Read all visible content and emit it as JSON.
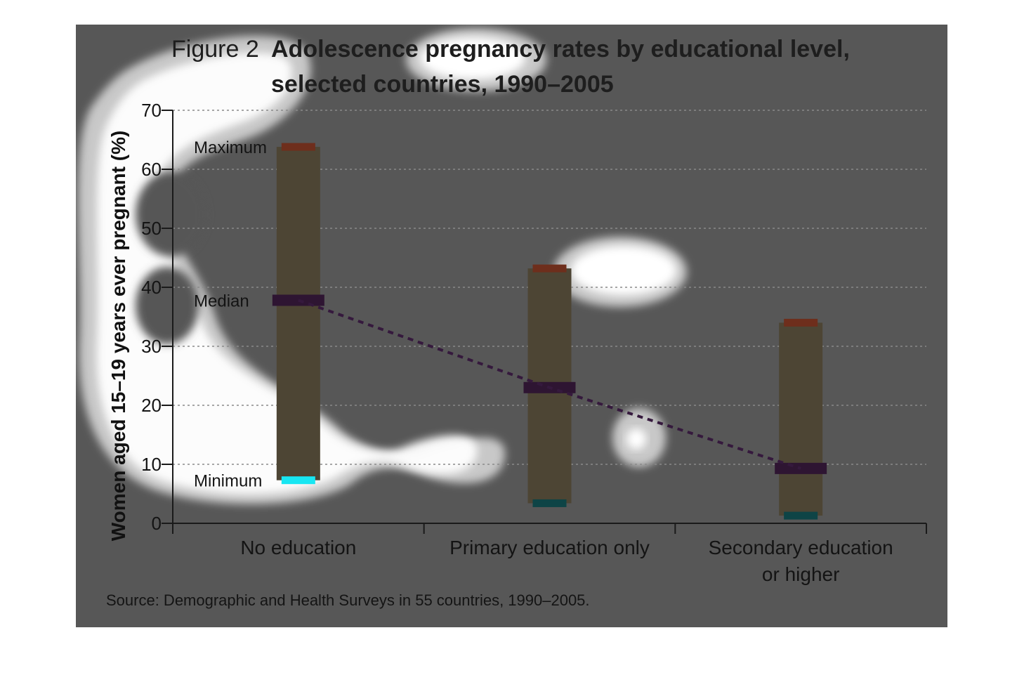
{
  "chart_data": {
    "type": "bar",
    "title_prefix": "Figure 2",
    "title_line1": "Adolescence pregnancy rates by educational level,",
    "title_line2": "selected countries, 1990–2005",
    "xlabel": "",
    "ylabel": "Women aged 15–19 years ever pregnant (%)",
    "ylim": [
      0,
      70
    ],
    "yticks": [
      "0",
      "10",
      "20",
      "30",
      "40",
      "50",
      "60",
      "70"
    ],
    "grid": true,
    "categories": [
      {
        "lines": [
          "No education"
        ]
      },
      {
        "lines": [
          "Primary education only"
        ]
      },
      {
        "lines": [
          "Secondary education",
          "or higher"
        ]
      }
    ],
    "series": [
      {
        "name": "Maximum",
        "values": [
          63.8,
          43.2,
          34.0
        ]
      },
      {
        "name": "Median",
        "values": [
          37.8,
          23.0,
          9.3
        ]
      },
      {
        "name": "Minimum",
        "values": [
          7.3,
          3.4,
          1.3
        ]
      }
    ],
    "source": "Source: Demographic and Health Surveys in 55 countries, 1990–2005.",
    "colors": {
      "background": "#575757",
      "range_bar": "#4d4534",
      "maximum": "#6e2e1c",
      "median": "#2e1532",
      "minimum_first": "#18e6f2",
      "minimum": "#0e4446",
      "trend_line": "#35193d",
      "gridline": "#8a8a8a",
      "axis": "#1a1a1a"
    }
  }
}
